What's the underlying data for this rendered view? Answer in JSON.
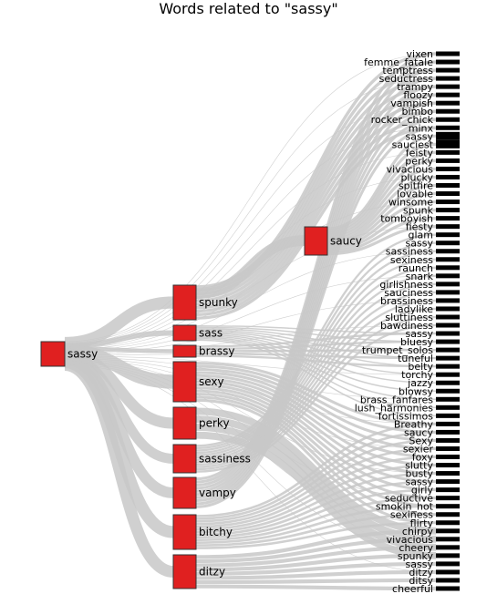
{
  "title": "Words related to \"sassy\"",
  "colors": {
    "node": "#e02020",
    "node_stroke": "#333333",
    "link": "#c8c8c8",
    "leaf": "#000000"
  },
  "root": "sassy",
  "level1": [
    "spunky",
    "sass",
    "brassy",
    "sexy",
    "perky",
    "sassiness",
    "vampy",
    "bitchy",
    "ditzy"
  ],
  "level2": [
    "saucy"
  ],
  "leaves": [
    "vixen",
    "femme_fatale",
    "temptress",
    "seductress",
    "trampy",
    "floozy",
    "vampish",
    "bimbo",
    "rocker_chick",
    "minx",
    "sassy",
    "sauciest",
    "feisty",
    "perky",
    "vivacious",
    "plucky",
    "spitfire",
    "lovable",
    "winsome",
    "spunk",
    "tomboyish",
    "fiesty",
    "glam",
    "sassy",
    "sassiness",
    "sexiness",
    "raunch",
    "snark",
    "girlishness",
    "sauciness",
    "brassiness",
    "ladylike",
    "sluttiness",
    "bawdiness",
    "sassy",
    "bluesy",
    "trumpet_solos",
    "tuneful",
    "belty",
    "torchy",
    "jazzy",
    "blowsy",
    "brass_fanfares",
    "lush_harmonies",
    "fortissimos",
    "Breathy",
    "saucy",
    "Sexy",
    "sexier",
    "foxy",
    "slutty",
    "busty",
    "sassy",
    "girly",
    "seductive",
    "smokin_hot",
    "sexiness",
    "flirty",
    "chirpy",
    "vivacious",
    "cheery",
    "spunky",
    "sassy",
    "ditzy",
    "ditsy",
    "cheerful"
  ]
}
